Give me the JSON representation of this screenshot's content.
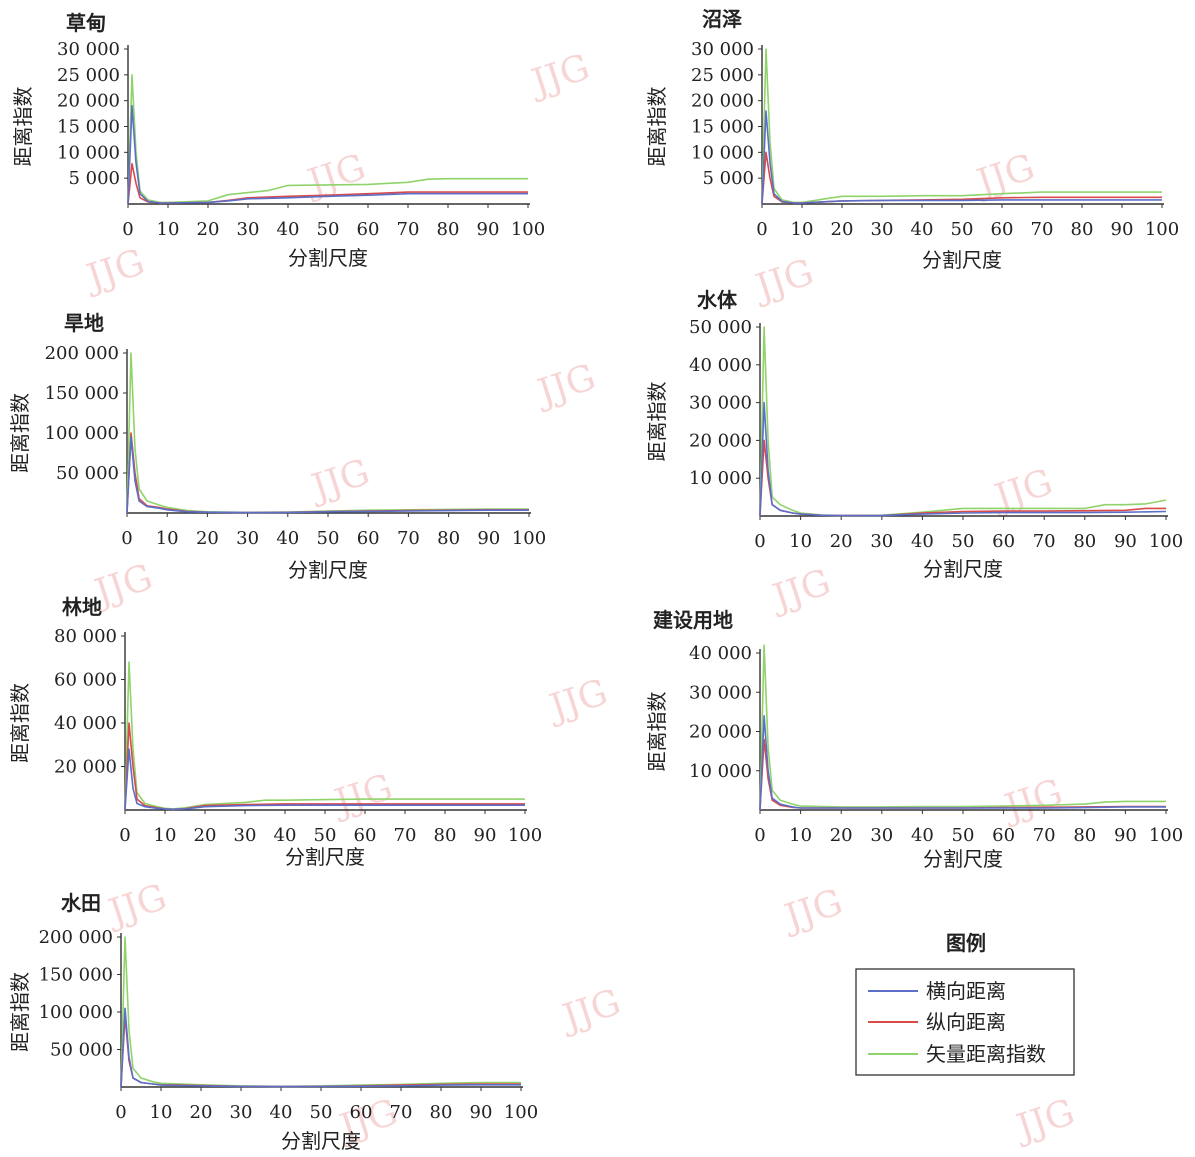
{
  "legend": {
    "title": "图例",
    "items": [
      {
        "label": "横向距离",
        "color": "#5b6fc9"
      },
      {
        "label": "纵向距离",
        "color": "#d94a4a"
      },
      {
        "label": "矢量距离指数",
        "color": "#8fd36a"
      }
    ]
  },
  "watermark": "JJG",
  "chart_data": [
    {
      "type": "line",
      "title": "草甸",
      "xlabel": "分割尺度",
      "ylabel": "距离指数",
      "xlim": [
        0,
        100
      ],
      "ylim": [
        0,
        30000
      ],
      "xticks": [
        0,
        10,
        20,
        30,
        40,
        50,
        60,
        70,
        80,
        90,
        100
      ],
      "yticks": [
        5000,
        10000,
        15000,
        20000,
        25000,
        30000
      ],
      "ytick_labels": [
        "5 000",
        "10 000",
        "15 000",
        "20 000",
        "25 000",
        "30 000"
      ],
      "series": [
        {
          "name": "横向距离",
          "x": [
            0,
            1,
            2,
            3,
            5,
            8,
            10,
            20,
            25,
            30,
            40,
            50,
            60,
            70,
            80,
            90,
            100
          ],
          "y": [
            0,
            19000,
            8000,
            2000,
            500,
            200,
            200,
            300,
            600,
            1000,
            1200,
            1500,
            1700,
            2000,
            2000,
            2000,
            2000
          ]
        },
        {
          "name": "纵向距离",
          "x": [
            0,
            1,
            2,
            3,
            5,
            8,
            10,
            20,
            25,
            30,
            40,
            50,
            60,
            70,
            80,
            90,
            100
          ],
          "y": [
            0,
            7800,
            4000,
            1200,
            400,
            200,
            200,
            300,
            700,
            1200,
            1500,
            1700,
            2000,
            2300,
            2300,
            2300,
            2300
          ]
        },
        {
          "name": "矢量距离指数",
          "x": [
            0,
            1,
            2,
            3,
            5,
            8,
            10,
            20,
            25,
            30,
            35,
            40,
            50,
            60,
            70,
            75,
            80,
            90,
            100
          ],
          "y": [
            0,
            25000,
            10000,
            2500,
            800,
            300,
            300,
            600,
            1800,
            2200,
            2600,
            3600,
            3700,
            3800,
            4200,
            4800,
            4900,
            4900,
            4900
          ]
        }
      ]
    },
    {
      "type": "line",
      "title": "沼泽",
      "xlabel": "分割尺度",
      "ylabel": "距离指数",
      "xlim": [
        0,
        100
      ],
      "ylim": [
        0,
        30000
      ],
      "xticks": [
        0,
        10,
        20,
        30,
        40,
        50,
        60,
        70,
        80,
        90,
        100
      ],
      "yticks": [
        5000,
        10000,
        15000,
        20000,
        25000,
        30000
      ],
      "ytick_labels": [
        "5 000",
        "10 000",
        "15 000",
        "20 000",
        "25 000",
        "30 000"
      ],
      "series": [
        {
          "name": "横向距离",
          "x": [
            0,
            1,
            2,
            3,
            5,
            8,
            10,
            15,
            20,
            30,
            40,
            50,
            60,
            70,
            80,
            90,
            100
          ],
          "y": [
            0,
            18000,
            8000,
            2000,
            500,
            200,
            200,
            400,
            600,
            700,
            700,
            700,
            800,
            800,
            800,
            800,
            800
          ]
        },
        {
          "name": "纵向距离",
          "x": [
            0,
            1,
            2,
            3,
            5,
            8,
            10,
            15,
            20,
            30,
            40,
            50,
            60,
            70,
            80,
            90,
            100
          ],
          "y": [
            0,
            10000,
            5000,
            1500,
            400,
            200,
            200,
            400,
            600,
            700,
            800,
            900,
            1200,
            1300,
            1300,
            1300,
            1300
          ]
        },
        {
          "name": "矢量距离指数",
          "x": [
            0,
            1,
            2,
            3,
            5,
            8,
            10,
            15,
            20,
            30,
            40,
            50,
            55,
            60,
            70,
            80,
            90,
            100
          ],
          "y": [
            0,
            30000,
            12000,
            3000,
            800,
            300,
            300,
            900,
            1500,
            1500,
            1600,
            1600,
            1800,
            2000,
            2300,
            2300,
            2300,
            2300
          ]
        }
      ]
    },
    {
      "type": "line",
      "title": "旱地",
      "xlabel": "分割尺度",
      "ylabel": "距离指数",
      "xlim": [
        0,
        100
      ],
      "ylim": [
        0,
        200000
      ],
      "xticks": [
        0,
        10,
        20,
        30,
        40,
        50,
        60,
        70,
        80,
        90,
        100
      ],
      "yticks": [
        50000,
        100000,
        150000,
        200000
      ],
      "ytick_labels": [
        "50 000",
        "100 000",
        "150 000",
        "200 000"
      ],
      "series": [
        {
          "name": "横向距离",
          "x": [
            0,
            1,
            2,
            3,
            5,
            8,
            10,
            15,
            20,
            30,
            40,
            50,
            60,
            70,
            80,
            90,
            100
          ],
          "y": [
            0,
            95000,
            40000,
            15000,
            8000,
            6000,
            4000,
            1500,
            1000,
            500,
            800,
            1500,
            2000,
            2500,
            3000,
            3500,
            3500
          ]
        },
        {
          "name": "纵向距离",
          "x": [
            0,
            1,
            2,
            3,
            5,
            8,
            10,
            15,
            20,
            30,
            40,
            50,
            60,
            70,
            80,
            90,
            100
          ],
          "y": [
            0,
            100000,
            50000,
            18000,
            9000,
            7000,
            5000,
            2000,
            1000,
            500,
            900,
            1800,
            2500,
            3000,
            3500,
            4000,
            4000
          ]
        },
        {
          "name": "矢量距离指数",
          "x": [
            0,
            1,
            2,
            3,
            5,
            8,
            10,
            15,
            20,
            30,
            40,
            50,
            60,
            70,
            80,
            90,
            100
          ],
          "y": [
            0,
            200000,
            80000,
            30000,
            15000,
            10000,
            7000,
            3000,
            1500,
            800,
            1200,
            2500,
            3500,
            4000,
            4500,
            5000,
            5000
          ]
        }
      ]
    },
    {
      "type": "line",
      "title": "水体",
      "xlabel": "分割尺度",
      "ylabel": "距离指数",
      "xlim": [
        0,
        100
      ],
      "ylim": [
        0,
        50000
      ],
      "xticks": [
        0,
        10,
        20,
        30,
        40,
        50,
        60,
        70,
        80,
        90,
        100
      ],
      "yticks": [
        10000,
        20000,
        30000,
        40000,
        50000
      ],
      "ytick_labels": [
        "10 000",
        "20 000",
        "30 000",
        "40 000",
        "50 000"
      ],
      "series": [
        {
          "name": "横向距离",
          "x": [
            0,
            1,
            2,
            3,
            5,
            8,
            10,
            15,
            20,
            30,
            40,
            50,
            60,
            70,
            80,
            90,
            100
          ],
          "y": [
            0,
            30000,
            12000,
            3000,
            1500,
            800,
            500,
            200,
            100,
            100,
            500,
            800,
            900,
            900,
            900,
            1000,
            1200
          ]
        },
        {
          "name": "纵向距离",
          "x": [
            0,
            1,
            2,
            3,
            5,
            8,
            10,
            15,
            20,
            30,
            40,
            50,
            60,
            70,
            80,
            90,
            95,
            100
          ],
          "y": [
            0,
            20000,
            10000,
            3000,
            1500,
            800,
            500,
            200,
            100,
            100,
            800,
            1200,
            1300,
            1300,
            1400,
            1500,
            2000,
            2000
          ]
        },
        {
          "name": "矢量距离指数",
          "x": [
            0,
            1,
            2,
            3,
            5,
            8,
            10,
            15,
            20,
            30,
            40,
            45,
            50,
            60,
            70,
            80,
            85,
            90,
            95,
            100
          ],
          "y": [
            0,
            50000,
            20000,
            5000,
            3000,
            1500,
            800,
            300,
            100,
            200,
            1000,
            1500,
            2000,
            2000,
            2000,
            2000,
            3000,
            3000,
            3200,
            4200
          ]
        }
      ]
    },
    {
      "type": "line",
      "title": "林地",
      "xlabel": "分割尺度",
      "ylabel": "距离指数",
      "xlim": [
        0,
        100
      ],
      "ylim": [
        0,
        80000
      ],
      "xticks": [
        0,
        10,
        20,
        30,
        40,
        50,
        60,
        70,
        80,
        90,
        100
      ],
      "yticks": [
        20000,
        40000,
        60000,
        80000
      ],
      "ytick_labels": [
        "20 000",
        "40 000",
        "60 000",
        "80 000"
      ],
      "series": [
        {
          "name": "横向距离",
          "x": [
            0,
            1,
            2,
            3,
            5,
            8,
            10,
            12,
            15,
            20,
            30,
            40,
            50,
            60,
            70,
            80,
            90,
            100
          ],
          "y": [
            0,
            28000,
            10000,
            3000,
            1500,
            800,
            500,
            300,
            500,
            1500,
            2000,
            2200,
            2200,
            2200,
            2200,
            2200,
            2200,
            2200
          ]
        },
        {
          "name": "纵向距离",
          "x": [
            0,
            1,
            2,
            3,
            5,
            8,
            10,
            12,
            15,
            20,
            30,
            40,
            50,
            60,
            70,
            80,
            90,
            100
          ],
          "y": [
            0,
            40000,
            20000,
            5000,
            2000,
            1000,
            500,
            300,
            600,
            2000,
            2500,
            2800,
            2800,
            2800,
            2800,
            2800,
            2800,
            2800
          ]
        },
        {
          "name": "矢量距离指数",
          "x": [
            0,
            1,
            2,
            3,
            5,
            8,
            10,
            12,
            15,
            20,
            30,
            35,
            40,
            50,
            60,
            70,
            80,
            90,
            100
          ],
          "y": [
            0,
            68000,
            28000,
            8000,
            3000,
            1500,
            800,
            500,
            1000,
            2500,
            3500,
            4500,
            4500,
            4800,
            5000,
            5000,
            5000,
            5000,
            5000
          ]
        }
      ]
    },
    {
      "type": "line",
      "title": "建设用地",
      "xlabel": "分割尺度",
      "ylabel": "距离指数",
      "xlim": [
        0,
        100
      ],
      "ylim": [
        0,
        40000
      ],
      "xticks": [
        0,
        10,
        20,
        30,
        40,
        50,
        60,
        70,
        80,
        90,
        100
      ],
      "yticks": [
        10000,
        20000,
        30000,
        40000
      ],
      "ytick_labels": [
        "10 000",
        "20 000",
        "30 000",
        "40 000"
      ],
      "series": [
        {
          "name": "横向距离",
          "x": [
            0,
            1,
            2,
            3,
            5,
            8,
            10,
            20,
            30,
            40,
            50,
            60,
            70,
            80,
            90,
            100
          ],
          "y": [
            0,
            24000,
            10000,
            3000,
            1500,
            800,
            500,
            500,
            500,
            500,
            500,
            500,
            500,
            600,
            800,
            800
          ]
        },
        {
          "name": "纵向距离",
          "x": [
            0,
            1,
            2,
            3,
            5,
            8,
            10,
            20,
            30,
            40,
            50,
            60,
            70,
            80,
            90,
            100
          ],
          "y": [
            0,
            18000,
            8000,
            2500,
            1200,
            700,
            500,
            500,
            500,
            500,
            500,
            600,
            700,
            800,
            900,
            900
          ]
        },
        {
          "name": "矢量距离指数",
          "x": [
            0,
            1,
            2,
            3,
            5,
            8,
            10,
            20,
            30,
            40,
            50,
            60,
            70,
            80,
            85,
            90,
            100
          ],
          "y": [
            0,
            42000,
            16000,
            5000,
            2500,
            1500,
            1000,
            800,
            800,
            900,
            900,
            1000,
            1200,
            1500,
            2000,
            2200,
            2200
          ]
        }
      ]
    },
    {
      "type": "line",
      "title": "水田",
      "xlabel": "分割尺度",
      "ylabel": "距离指数",
      "xlim": [
        0,
        100
      ],
      "ylim": [
        0,
        200000
      ],
      "xticks": [
        0,
        10,
        20,
        30,
        40,
        50,
        60,
        70,
        80,
        90,
        100
      ],
      "yticks": [
        50000,
        100000,
        150000,
        200000
      ],
      "ytick_labels": [
        "50 000",
        "100 000",
        "150 000",
        "200 000"
      ],
      "series": [
        {
          "name": "横向距离",
          "x": [
            0,
            1,
            2,
            3,
            5,
            8,
            10,
            15,
            20,
            30,
            40,
            50,
            60,
            70,
            80,
            90,
            100
          ],
          "y": [
            0,
            105000,
            40000,
            12000,
            6000,
            4000,
            2500,
            2000,
            1500,
            800,
            500,
            800,
            1000,
            1500,
            2500,
            3000,
            3000
          ]
        },
        {
          "name": "纵向距离",
          "x": [
            0,
            1,
            2,
            3,
            5,
            8,
            10,
            15,
            20,
            30,
            40,
            50,
            60,
            70,
            80,
            90,
            100
          ],
          "y": [
            0,
            95000,
            35000,
            12000,
            6000,
            4000,
            3000,
            2500,
            2000,
            1000,
            600,
            1000,
            1500,
            2500,
            3500,
            4000,
            4000
          ]
        },
        {
          "name": "矢量距离指数",
          "x": [
            0,
            1,
            2,
            3,
            5,
            8,
            10,
            15,
            20,
            30,
            40,
            50,
            60,
            70,
            80,
            90,
            100
          ],
          "y": [
            0,
            200000,
            75000,
            25000,
            12000,
            7000,
            5000,
            4000,
            3000,
            1500,
            800,
            1500,
            2500,
            3500,
            5000,
            6000,
            6000
          ]
        }
      ]
    }
  ]
}
